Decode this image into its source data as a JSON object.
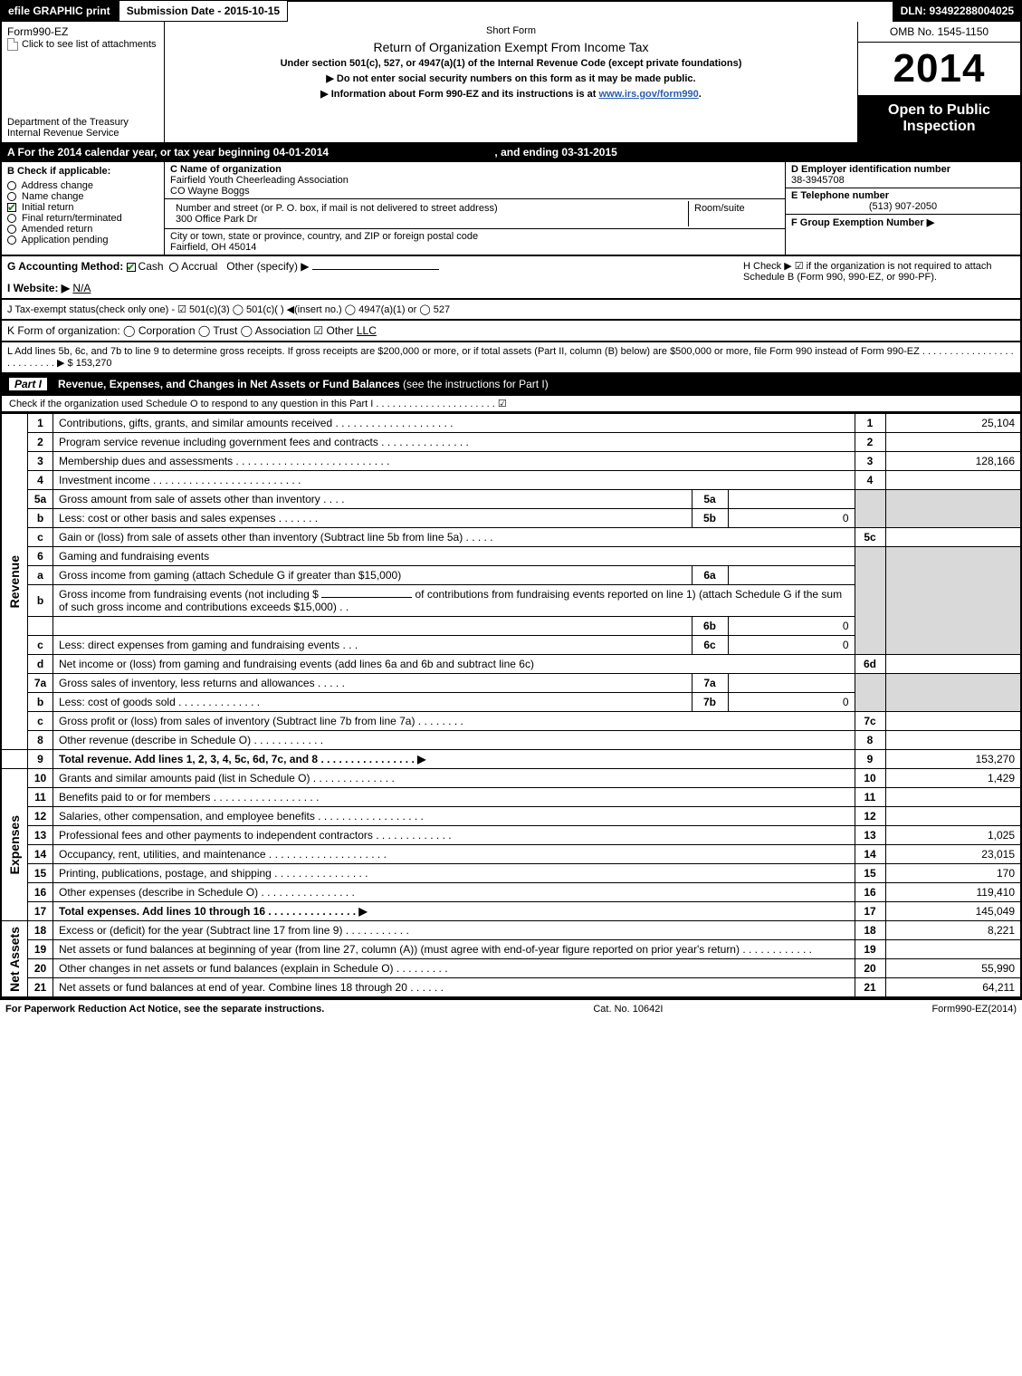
{
  "topbar": {
    "efile": "efile GRAPHIC print",
    "submission": "Submission Date - 2015-10-15",
    "dln": "DLN: 93492288004025"
  },
  "header": {
    "form": "Form990-EZ",
    "attach": "Click to see list of attachments",
    "dept": "Department of the Treasury",
    "irs": "Internal Revenue Service",
    "short": "Short Form",
    "title": "Return of Organization Exempt From Income Tax",
    "sub1": "Under section 501(c), 527, or 4947(a)(1) of the Internal Revenue Code (except private foundations)",
    "sub2": "▶ Do not enter social security numbers on this form as it may be made public.",
    "sub3_pre": "▶ Information about Form 990-EZ and its instructions is at ",
    "sub3_link": "www.irs.gov/form990",
    "omb": "OMB No. 1545-1150",
    "year": "2014",
    "otp1": "Open to Public",
    "otp2": "Inspection"
  },
  "rowA": {
    "text_pre": "A  For the 2014 calendar year, or tax year beginning ",
    "begin": "04-01-2014",
    "mid": ", and ending ",
    "end": "03-31-2015"
  },
  "B": {
    "label": "B  Check if applicable:",
    "items": [
      {
        "label": "Address change",
        "checked": false
      },
      {
        "label": "Name change",
        "checked": false
      },
      {
        "label": "Initial return",
        "checked": true
      },
      {
        "label": "Final return/terminated",
        "checked": false
      },
      {
        "label": "Amended return",
        "checked": false
      },
      {
        "label": "Application pending",
        "checked": false
      }
    ]
  },
  "C": {
    "label": "C Name of organization",
    "name": "Fairfield Youth Cheerleading Association",
    "co": "CO Wayne Boggs",
    "addr_label": "Number and street (or P. O. box, if mail is not delivered to street address)",
    "addr": "300 Office Park Dr",
    "room_label": "Room/suite",
    "city_label": "City or town, state or province, country, and ZIP or foreign postal code",
    "city": "Fairfield, OH  45014"
  },
  "D": {
    "label": "D Employer identification number",
    "val": "38-3945708"
  },
  "E": {
    "label": "E Telephone number",
    "val": "(513) 907-2050"
  },
  "F": {
    "label": "F Group Exemption Number  ▶"
  },
  "G": {
    "label": "G Accounting Method:",
    "cash": "Cash",
    "accrual": "Accrual",
    "other": "Other (specify) ▶"
  },
  "H": {
    "text": "H  Check ▶  ☑  if the organization is not required to attach Schedule B (Form 990, 990-EZ, or 990-PF)."
  },
  "I": {
    "label": "I Website: ▶",
    "val": "N/A"
  },
  "J": {
    "text": "J Tax-exempt status(check only one) - ☑ 501(c)(3)  ◯ 501(c)(  ) ◀(insert no.)  ◯ 4947(a)(1) or  ◯ 527"
  },
  "K": {
    "text": "K Form of organization:  ◯ Corporation  ◯ Trust  ◯ Association  ☑ Other ",
    "other": "LLC"
  },
  "L": {
    "text": "L Add lines 5b, 6c, and 7b to line 9 to determine gross receipts. If gross receipts are $200,000 or more, or if total assets (Part II, column (B) below) are $500,000 or more, file Form 990 instead of Form 990-EZ  .  .  .  .  .  .  .  .  .  .  .  .  .  .  .  .  .  .  .  .  .  .  .  .  .  .  ▶ $ 153,270"
  },
  "part1": {
    "label": "Part I",
    "title": "Revenue, Expenses, and Changes in Net Assets or Fund Balances",
    "inst": "(see the instructions for Part I)",
    "sub": "Check if the organization used Schedule O to respond to any question in this Part I .  .  .  .  .  .  .  .  .  .  .  .  .  .  .  .  .  .  .  .  .  .  ☑"
  },
  "sections": {
    "revenue": "Revenue",
    "expenses": "Expenses",
    "netassets": "Net Assets"
  },
  "lines": {
    "1": {
      "desc": "Contributions, gifts, grants, and similar amounts received .  .  .  .  .  .  .  .  .  .  .  .  .  .  .  .  .  .  .  .",
      "val": "25,104"
    },
    "2": {
      "desc": "Program service revenue including government fees and contracts .  .  .  .  .  .  .  .  .  .  .  .  .  .  .",
      "val": ""
    },
    "3": {
      "desc": "Membership dues and assessments .  .  .  .  .  .  .  .  .  .  .  .  .  .  .  .  .  .  .  .  .  .  .  .  .  .",
      "val": "128,166"
    },
    "4": {
      "desc": "Investment income .  .  .  .  .  .  .  .  .  .  .  .  .  .  .  .  .  .  .  .  .  .  .  .  .",
      "val": ""
    },
    "5a": {
      "desc": "Gross amount from sale of assets other than inventory  .  .  .  .",
      "sub": "5a",
      "subval": ""
    },
    "5b": {
      "desc": "Less: cost or other basis and sales expenses .  .  .  .  .  .  .",
      "sub": "5b",
      "subval": "0"
    },
    "5c": {
      "desc": "Gain or (loss) from sale of assets other than inventory (Subtract line 5b from line 5a)  .  .  .  .  .",
      "val": ""
    },
    "6": {
      "desc": "Gaming and fundraising events"
    },
    "6a": {
      "desc": "Gross income from gaming (attach Schedule G if greater than $15,000)",
      "sub": "6a",
      "subval": ""
    },
    "6b_pre": "Gross income from fundraising events (not including $ ",
    "6b_post": " of contributions from fundraising events reported on line 1) (attach Schedule G if the sum of such gross income and contributions exceeds $15,000)   .   .",
    "6b": {
      "sub": "6b",
      "subval": "0"
    },
    "6c": {
      "desc": "Less: direct expenses from gaming and fundraising events    .   .   .",
      "sub": "6c",
      "subval": "0"
    },
    "6d": {
      "desc": "Net income or (loss) from gaming and fundraising events (add lines 6a and 6b and subtract line 6c)",
      "val": ""
    },
    "7a": {
      "desc": "Gross sales of inventory, less returns and allowances  .  .  .  .  .",
      "sub": "7a",
      "subval": ""
    },
    "7b": {
      "desc": "Less: cost of goods sold           .  .  .  .  .  .  .  .  .  .  .  .  .  .",
      "sub": "7b",
      "subval": "0"
    },
    "7c": {
      "desc": "Gross profit or (loss) from sales of inventory (Subtract line 7b from line 7a)  .  .  .  .  .  .  .  .",
      "val": ""
    },
    "8": {
      "desc": "Other revenue (describe in Schedule O)                 .  .  .  .  .  .  .  .  .  .  .  .",
      "val": ""
    },
    "9": {
      "desc": "Total revenue. Add lines 1, 2, 3, 4, 5c, 6d, 7c, and 8  .  .  .  .  .  .  .  .  .  .  .  .  .  .  .  .  ▶",
      "val": "153,270"
    },
    "10": {
      "desc": "Grants and similar amounts paid (list in Schedule O)          .  .  .  .  .  .  .  .  .  .  .  .  .  .",
      "val": "1,429"
    },
    "11": {
      "desc": "Benefits paid to or for members             .  .  .  .  .  .  .  .  .  .  .  .  .  .  .  .  .  .",
      "val": ""
    },
    "12": {
      "desc": "Salaries, other compensation, and employee benefits .  .  .  .  .  .  .  .  .  .  .  .  .  .  .  .  .  .",
      "val": ""
    },
    "13": {
      "desc": "Professional fees and other payments to independent contractors .  .  .  .  .  .  .  .  .  .  .  .  .",
      "val": "1,025"
    },
    "14": {
      "desc": "Occupancy, rent, utilities, and maintenance .  .  .  .  .  .  .  .  .  .  .  .  .  .  .  .  .  .  .  .",
      "val": "23,015"
    },
    "15": {
      "desc": "Printing, publications, postage, and shipping          .  .  .  .  .  .  .  .  .  .  .  .  .  .  .  .",
      "val": "170"
    },
    "16": {
      "desc": "Other expenses (describe in Schedule O)            .  .  .  .  .  .  .  .  .  .  .  .  .  .  .  .",
      "val": "119,410"
    },
    "17": {
      "desc": "Total expenses. Add lines 10 through 16          .  .  .  .  .  .  .  .  .  .  .  .  .  .  .  ▶",
      "val": "145,049"
    },
    "18": {
      "desc": "Excess or (deficit) for the year (Subtract line 17 from line 9)       .  .  .  .  .  .  .  .  .  .  .",
      "val": "8,221"
    },
    "19": {
      "desc": "Net assets or fund balances at beginning of year (from line 27, column (A)) (must agree with end-of-year figure reported on prior year's return)          .  .  .  .  .  .  .  .  .  .  .  .",
      "val": ""
    },
    "20": {
      "desc": "Other changes in net assets or fund balances (explain in Schedule O)    .  .  .  .  .  .  .  .  .",
      "val": "55,990"
    },
    "21": {
      "desc": "Net assets or fund balances at end of year. Combine lines 18 through 20       .  .  .  .  .  .",
      "val": "64,211"
    }
  },
  "footer": {
    "left": "For Paperwork Reduction Act Notice, see the separate instructions.",
    "mid": "Cat. No. 10642I",
    "right": "Form990-EZ(2014)"
  },
  "colors": {
    "black": "#000000",
    "white": "#ffffff",
    "grey": "#d9d9d9",
    "link": "#2a5db0",
    "check": "#1a7f1a"
  }
}
